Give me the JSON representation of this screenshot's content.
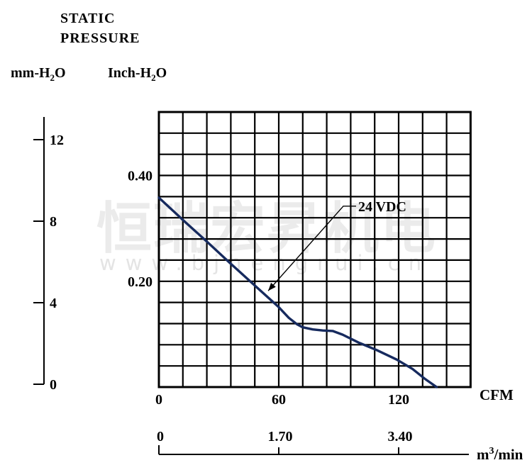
{
  "header": {
    "title_line1": "STATIC",
    "title_line2": "PRESSURE"
  },
  "unit_labels": {
    "mm": {
      "pre": "mm-H",
      "sub": "2",
      "post": "O"
    },
    "inch": {
      "pre": "Inch-H",
      "sub": "2",
      "post": "O"
    }
  },
  "watermark": {
    "cjk": "恒瑞宏昇机电",
    "url": "www.bjhengrui.cn"
  },
  "chart_data": {
    "type": "line",
    "title": "Static pressure vs airflow fan performance curve",
    "grid": {
      "columns": 13,
      "rows": 13,
      "grid_on": true
    },
    "x_axis": {
      "label": "CFM",
      "tick_values": [
        0,
        60,
        120
      ],
      "tick_labels": [
        "0",
        "60",
        "120"
      ],
      "min": 0,
      "max": 156
    },
    "x_axis2": {
      "label_pre": "m",
      "label_sup": "3",
      "label_post": "/min",
      "tick_labels": [
        "0",
        "1.70",
        "3.40"
      ],
      "tick_cfm_positions": [
        0,
        60,
        120
      ]
    },
    "y_axis_inch": {
      "unit": "Inch-H2O",
      "tick_labels": [
        "0.40",
        "0.20"
      ],
      "tick_values": [
        0.4,
        0.2
      ],
      "min": 0,
      "max": 0.52
    },
    "y_axis_mm": {
      "unit": "mm-H2O",
      "tick_labels": [
        "12",
        "8",
        "4",
        "0"
      ],
      "tick_values": [
        12,
        8,
        4,
        0
      ],
      "min": 0,
      "max": 12
    },
    "series": [
      {
        "name": "24 VDC",
        "x_unit": "CFM",
        "y_unit": "Inch-H2O",
        "points": [
          [
            0,
            0.358
          ],
          [
            12,
            0.316
          ],
          [
            24,
            0.275
          ],
          [
            36,
            0.233
          ],
          [
            48,
            0.192
          ],
          [
            60,
            0.151
          ],
          [
            65,
            0.131
          ],
          [
            69,
            0.119
          ],
          [
            72,
            0.113
          ],
          [
            77,
            0.109
          ],
          [
            82,
            0.107
          ],
          [
            87,
            0.106
          ],
          [
            92,
            0.099
          ],
          [
            100,
            0.084
          ],
          [
            109,
            0.07
          ],
          [
            119,
            0.052
          ],
          [
            127,
            0.034
          ],
          [
            133,
            0.016
          ],
          [
            139,
            0
          ]
        ]
      }
    ],
    "annotation": {
      "label": "24 VDC",
      "target_point": [
        54.7,
        0.182
      ],
      "elbow_point": [
        92.3,
        0.342
      ]
    },
    "colors": {
      "curve": "#162a5e",
      "grid": "#000000",
      "text": "#000000",
      "watermark": "#ebebeb"
    },
    "legend_position": "inline-annotation"
  }
}
